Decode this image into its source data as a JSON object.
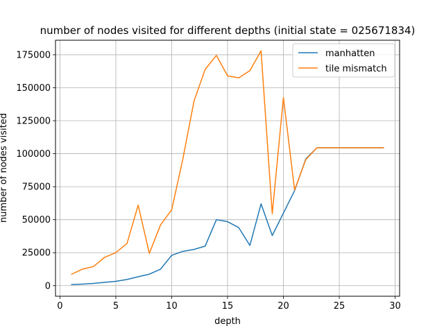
{
  "chart_data": {
    "type": "line",
    "title": "number of nodes visited for different depths (initial state = 025671834)",
    "xlabel": "depth",
    "ylabel": "number of nodes visited",
    "xlim": [
      -0.4,
      30.4
    ],
    "ylim": [
      -8000,
      186000
    ],
    "xticks": [
      0,
      5,
      10,
      15,
      20,
      25,
      30
    ],
    "xtick_labels": [
      "0",
      "5",
      "10",
      "15",
      "20",
      "25",
      "30"
    ],
    "yticks": [
      0,
      25000,
      50000,
      75000,
      100000,
      125000,
      150000,
      175000
    ],
    "ytick_labels": [
      "0",
      "25000",
      "50000",
      "75000",
      "100000",
      "125000",
      "150000",
      "175000"
    ],
    "grid": true,
    "legend_position": "top-right",
    "x": [
      1,
      2,
      3,
      4,
      5,
      6,
      7,
      8,
      9,
      10,
      11,
      12,
      13,
      14,
      15,
      16,
      17,
      18,
      19,
      20,
      21,
      22,
      23,
      24,
      25,
      26,
      27,
      28,
      29
    ],
    "series": [
      {
        "name": "manhatten",
        "color": "#1f77b4",
        "values": [
          800,
          1200,
          1700,
          2500,
          3300,
          4700,
          6800,
          8700,
          12500,
          23000,
          26000,
          27500,
          30000,
          50000,
          48500,
          44000,
          30500,
          62000,
          38000,
          55000,
          72000,
          96000,
          104500,
          104500,
          104500,
          104500,
          104500,
          104500,
          104500
        ]
      },
      {
        "name": "tile mismatch",
        "color": "#ff7f0e",
        "values": [
          8500,
          12500,
          14500,
          21500,
          25000,
          32000,
          61000,
          24500,
          46000,
          57500,
          96000,
          140000,
          164000,
          174500,
          159000,
          157500,
          163000,
          178000,
          54500,
          142500,
          72500,
          95500,
          104500,
          104500,
          104500,
          104500,
          104500,
          104500,
          104500
        ]
      }
    ]
  }
}
